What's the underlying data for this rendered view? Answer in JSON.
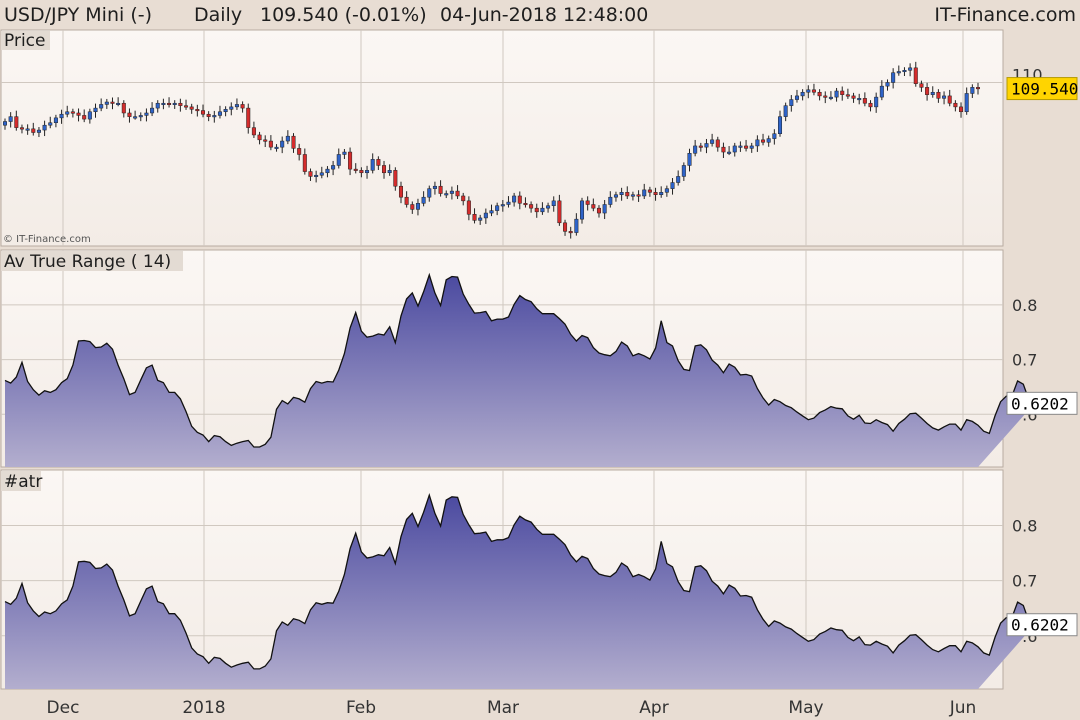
{
  "header": {
    "symbol": "USD/JPY Mini (-)",
    "period": "Daily",
    "price_change": "109.540 (-0.01%)",
    "datetime": "04-Jun-2018 12:48:00",
    "brand": "IT-Finance.com"
  },
  "colors": {
    "background": "#e8ddd3",
    "panel_bg_top": "#fbf7f4",
    "panel_bg_bottom": "#f3ece6",
    "up_candle": "#2e63c8",
    "down_candle": "#d42c2c",
    "area_top": "#4b4aa0",
    "area_bottom": "#b3aece",
    "price_badge": "#ffd400",
    "grid": "#d0c8c0"
  },
  "chart_data": [
    {
      "type": "candlestick",
      "panel_label": "Price",
      "copyright": "© IT-Finance.com",
      "current_price": "109.540",
      "y_ticks": [
        "110"
      ],
      "x_month_labels": [
        "Dec",
        "2018",
        "Feb",
        "Mar",
        "Apr",
        "May",
        "Jun"
      ],
      "close": [
        106.8,
        107.2,
        106.3,
        106.2,
        106.2,
        105.9,
        106.1,
        106.5,
        106.7,
        107.1,
        107.4,
        107.6,
        107.5,
        107.3,
        107.0,
        107.6,
        107.9,
        108.2,
        108.4,
        108.3,
        108.3,
        107.5,
        107.2,
        107.2,
        107.3,
        107.5,
        107.9,
        108.3,
        108.3,
        108.2,
        108.3,
        108.1,
        108.0,
        107.8,
        107.7,
        107.4,
        107.2,
        107.3,
        107.6,
        107.8,
        108.0,
        108.2,
        107.9,
        106.3,
        105.7,
        105.3,
        105.2,
        104.7,
        104.7,
        105.2,
        105.6,
        104.6,
        104.1,
        102.7,
        102.3,
        102.4,
        102.6,
        102.9,
        103.2,
        104.1,
        104.3,
        102.9,
        102.8,
        102.6,
        102.8,
        103.7,
        103.2,
        102.6,
        102.8,
        101.5,
        100.6,
        100.0,
        99.6,
        100.1,
        100.6,
        101.3,
        101.5,
        100.9,
        100.9,
        101.1,
        100.7,
        100.3,
        99.2,
        98.7,
        98.9,
        99.3,
        99.5,
        99.9,
        100.0,
        100.2,
        100.7,
        100.1,
        100.0,
        99.7,
        99.4,
        99.7,
        99.9,
        100.3,
        98.5,
        97.8,
        97.7,
        98.8,
        100.3,
        100.0,
        99.7,
        99.3,
        100.0,
        100.6,
        100.8,
        101.0,
        100.7,
        100.8,
        100.7,
        101.2,
        101.0,
        100.8,
        101.0,
        101.3,
        101.8,
        102.3,
        103.2,
        104.2,
        104.8,
        104.7,
        105.0,
        105.3,
        104.7,
        104.3,
        104.3,
        104.8,
        104.8,
        104.6,
        104.8,
        105.3,
        105.1,
        105.4,
        105.8,
        107.2,
        108.1,
        108.6,
        108.9,
        109.2,
        109.4,
        109.2,
        108.9,
        108.8,
        108.8,
        109.3,
        109.0,
        108.9,
        108.7,
        108.7,
        108.3,
        108.0,
        108.8,
        109.7,
        110.0,
        110.8,
        110.9,
        111.0,
        111.2,
        109.9,
        109.6,
        109.0,
        109.2,
        108.7,
        108.9,
        108.3,
        108.0,
        107.6,
        109.1,
        109.6,
        109.5
      ]
    },
    {
      "type": "area",
      "panel_label": "Av True Range ( 14)",
      "current_value": "0.6202",
      "y_ticks": [
        0.6,
        0.7,
        0.8
      ],
      "values": [
        0.662,
        0.657,
        0.668,
        0.695,
        0.66,
        0.645,
        0.635,
        0.643,
        0.64,
        0.645,
        0.658,
        0.665,
        0.69,
        0.734,
        0.735,
        0.733,
        0.722,
        0.723,
        0.73,
        0.719,
        0.69,
        0.665,
        0.636,
        0.64,
        0.663,
        0.685,
        0.69,
        0.662,
        0.658,
        0.64,
        0.64,
        0.628,
        0.605,
        0.578,
        0.567,
        0.562,
        0.55,
        0.561,
        0.559,
        0.55,
        0.543,
        0.547,
        0.55,
        0.552,
        0.54,
        0.54,
        0.545,
        0.558,
        0.609,
        0.625,
        0.619,
        0.631,
        0.628,
        0.622,
        0.647,
        0.66,
        0.657,
        0.66,
        0.659,
        0.681,
        0.711,
        0.758,
        0.786,
        0.752,
        0.741,
        0.743,
        0.747,
        0.745,
        0.76,
        0.731,
        0.78,
        0.811,
        0.822,
        0.798,
        0.824,
        0.855,
        0.822,
        0.799,
        0.846,
        0.852,
        0.851,
        0.82,
        0.801,
        0.785,
        0.786,
        0.788,
        0.771,
        0.774,
        0.774,
        0.778,
        0.801,
        0.817,
        0.81,
        0.806,
        0.793,
        0.784,
        0.784,
        0.784,
        0.775,
        0.765,
        0.746,
        0.734,
        0.744,
        0.74,
        0.722,
        0.712,
        0.709,
        0.707,
        0.715,
        0.732,
        0.725,
        0.707,
        0.711,
        0.707,
        0.701,
        0.721,
        0.771,
        0.731,
        0.725,
        0.698,
        0.682,
        0.68,
        0.725,
        0.727,
        0.718,
        0.699,
        0.69,
        0.676,
        0.692,
        0.686,
        0.672,
        0.673,
        0.67,
        0.647,
        0.63,
        0.617,
        0.627,
        0.623,
        0.616,
        0.612,
        0.604,
        0.597,
        0.59,
        0.593,
        0.603,
        0.608,
        0.614,
        0.611,
        0.61,
        0.597,
        0.591,
        0.598,
        0.584,
        0.583,
        0.59,
        0.585,
        0.581,
        0.569,
        0.583,
        0.591,
        0.601,
        0.602,
        0.593,
        0.583,
        0.575,
        0.571,
        0.577,
        0.582,
        0.582,
        0.571,
        0.59,
        0.587,
        0.58,
        0.569,
        0.565,
        0.597,
        0.623,
        0.633,
        0.633,
        0.661,
        0.655,
        0.626,
        0.62
      ],
      "grid": true
    },
    {
      "type": "area",
      "panel_label": "#atr",
      "current_value": "0.6202",
      "y_ticks": [
        0.6,
        0.7,
        0.8
      ],
      "values": [
        0.662,
        0.657,
        0.668,
        0.695,
        0.66,
        0.645,
        0.635,
        0.643,
        0.64,
        0.645,
        0.658,
        0.665,
        0.69,
        0.734,
        0.735,
        0.733,
        0.722,
        0.723,
        0.73,
        0.719,
        0.69,
        0.665,
        0.636,
        0.64,
        0.663,
        0.685,
        0.69,
        0.662,
        0.658,
        0.64,
        0.64,
        0.628,
        0.605,
        0.578,
        0.567,
        0.562,
        0.55,
        0.561,
        0.559,
        0.55,
        0.543,
        0.547,
        0.55,
        0.552,
        0.54,
        0.54,
        0.545,
        0.558,
        0.609,
        0.625,
        0.619,
        0.631,
        0.628,
        0.622,
        0.647,
        0.66,
        0.657,
        0.66,
        0.659,
        0.681,
        0.711,
        0.758,
        0.786,
        0.752,
        0.741,
        0.743,
        0.747,
        0.745,
        0.76,
        0.731,
        0.78,
        0.811,
        0.822,
        0.798,
        0.824,
        0.855,
        0.822,
        0.799,
        0.846,
        0.852,
        0.851,
        0.82,
        0.801,
        0.785,
        0.786,
        0.788,
        0.771,
        0.774,
        0.774,
        0.778,
        0.801,
        0.817,
        0.81,
        0.806,
        0.793,
        0.784,
        0.784,
        0.784,
        0.775,
        0.765,
        0.746,
        0.734,
        0.744,
        0.74,
        0.722,
        0.712,
        0.709,
        0.707,
        0.715,
        0.732,
        0.725,
        0.707,
        0.711,
        0.707,
        0.701,
        0.721,
        0.771,
        0.731,
        0.725,
        0.698,
        0.682,
        0.68,
        0.725,
        0.727,
        0.718,
        0.699,
        0.69,
        0.676,
        0.692,
        0.686,
        0.672,
        0.673,
        0.67,
        0.647,
        0.63,
        0.617,
        0.627,
        0.623,
        0.616,
        0.612,
        0.604,
        0.597,
        0.59,
        0.593,
        0.603,
        0.608,
        0.614,
        0.611,
        0.61,
        0.597,
        0.591,
        0.598,
        0.584,
        0.583,
        0.59,
        0.585,
        0.581,
        0.569,
        0.583,
        0.591,
        0.601,
        0.602,
        0.593,
        0.583,
        0.575,
        0.571,
        0.577,
        0.582,
        0.582,
        0.571,
        0.59,
        0.587,
        0.58,
        0.569,
        0.565,
        0.597,
        0.623,
        0.633,
        0.633,
        0.661,
        0.655,
        0.626,
        0.62
      ],
      "grid": true
    }
  ]
}
